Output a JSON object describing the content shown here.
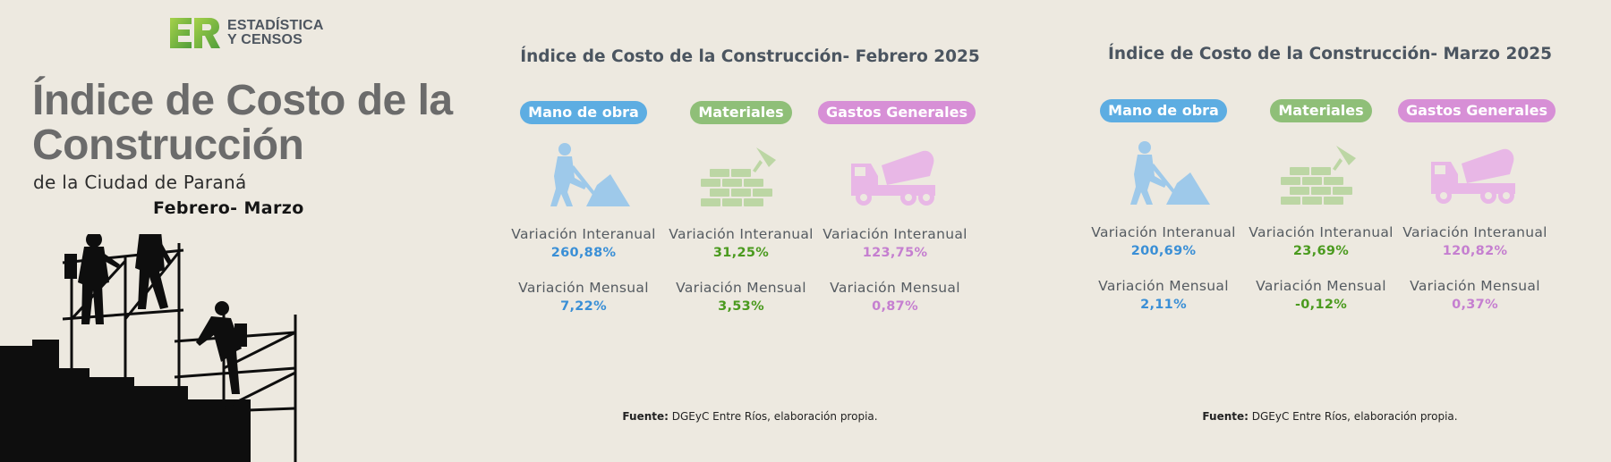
{
  "logo": {
    "mark": "ER",
    "line1": "ESTADÍSTICA",
    "line2": "Y CENSOS",
    "colors": [
      "#8cc63f",
      "#5aa83a"
    ]
  },
  "hero": {
    "title": "Índice de Costo de la Construcción",
    "subtitle": "de la Ciudad de Paraná",
    "period": "Febrero- Marzo",
    "image": "construction-workers-silhouette"
  },
  "categories": [
    {
      "key": "mano",
      "label": "Mano de obra",
      "color": "#5dade2",
      "value_color": "#3a8fd6",
      "icon": "worker-shovel-icon"
    },
    {
      "key": "mat",
      "label": "Materiales",
      "color": "#8fbf78",
      "value_color": "#4a9a1e",
      "icon": "bricks-trowel-icon"
    },
    {
      "key": "gg",
      "label": "Gastos Generales",
      "color": "#d78fd6",
      "value_color": "#c57fd0",
      "icon": "cement-truck-icon"
    }
  ],
  "labels": {
    "interanual": "Variación Interanual",
    "mensual": "Variación Mensual"
  },
  "panels": [
    {
      "title": "Índice de Costo de la Construcción- Febrero 2025",
      "values": [
        {
          "interanual": "260,88%",
          "mensual": "7,22%"
        },
        {
          "interanual": "31,25%",
          "mensual": "3,53%"
        },
        {
          "interanual": "123,75%",
          "mensual": "0,87%"
        }
      ],
      "source_bold": "Fuente:",
      "source_text": " DGEyC Entre Ríos, elaboración propia."
    },
    {
      "title": "Índice de Costo de la Construcción- Marzo 2025",
      "values": [
        {
          "interanual": "200,69%",
          "mensual": "2,11%"
        },
        {
          "interanual": "23,69%",
          "mensual": "-0,12%"
        },
        {
          "interanual": "120,82%",
          "mensual": "0,37%"
        }
      ],
      "source_bold": "Fuente:",
      "source_text": " DGEyC Entre Ríos, elaboración propia."
    }
  ]
}
